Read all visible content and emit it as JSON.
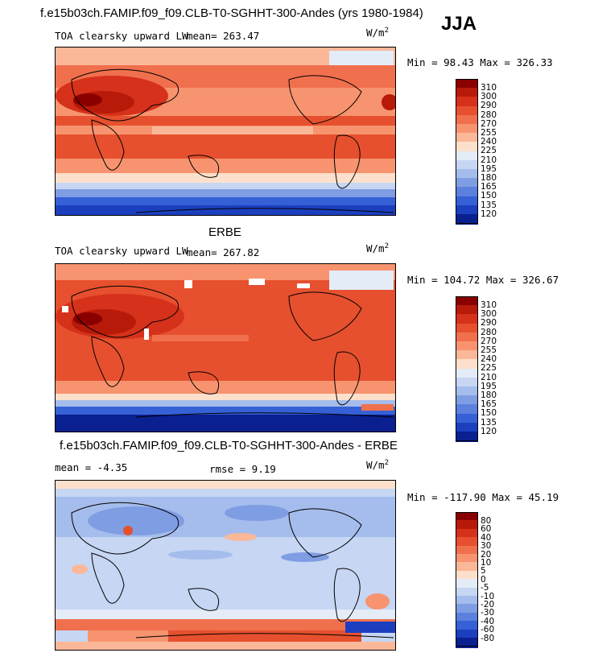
{
  "season": "JJA",
  "panels": [
    {
      "title": "f.e15b03ch.FAMIP.f09_f09.CLB-T0-SGHHT-300-Andes (yrs 1980-1984)",
      "variable": "TOA clearsky upward LW",
      "stat1": "mean= 263.47",
      "stat2": "",
      "units": "W/m",
      "units_exp": "2",
      "minmax": "Min =  98.43 Max = 326.33",
      "levels": [
        "310",
        "300",
        "290",
        "280",
        "270",
        "255",
        "240",
        "225",
        "210",
        "195",
        "180",
        "165",
        "150",
        "135",
        "120"
      ],
      "colors": [
        "#8a0000",
        "#b81a0a",
        "#d6311a",
        "#e6502e",
        "#f0704e",
        "#f7946f",
        "#fbb899",
        "#fde0cc",
        "#e4ecf8",
        "#c6d6f3",
        "#a5bdec",
        "#7f9de3",
        "#5c80dd",
        "#3660d6",
        "#1c3fbf",
        "#0a1f90"
      ]
    },
    {
      "title": "ERBE",
      "variable": "TOA clearsky upward LW",
      "stat1": "mean= 267.82",
      "stat2": "",
      "units": "W/m",
      "units_exp": "2",
      "minmax": "Min = 104.72 Max = 326.67",
      "levels": [
        "310",
        "300",
        "290",
        "280",
        "270",
        "255",
        "240",
        "225",
        "210",
        "195",
        "180",
        "165",
        "150",
        "135",
        "120"
      ],
      "colors": [
        "#8a0000",
        "#b81a0a",
        "#d6311a",
        "#e6502e",
        "#f0704e",
        "#f7946f",
        "#fbb899",
        "#fde0cc",
        "#e4ecf8",
        "#c6d6f3",
        "#a5bdec",
        "#7f9de3",
        "#5c80dd",
        "#3660d6",
        "#1c3fbf",
        "#0a1f90"
      ]
    },
    {
      "title": "f.e15b03ch.FAMIP.f09_f09.CLB-T0-SGHHT-300-Andes - ERBE",
      "variable": "",
      "stat1": "mean =  -4.35",
      "stat2": "rmse =   9.19",
      "units": "W/m",
      "units_exp": "2",
      "minmax": "Min = -117.90 Max =  45.19",
      "levels": [
        "80",
        "60",
        "40",
        "30",
        "20",
        "10",
        "5",
        "0",
        "-5",
        "-10",
        "-20",
        "-30",
        "-40",
        "-60",
        "-80"
      ],
      "colors": [
        "#8a0000",
        "#b81a0a",
        "#d6311a",
        "#e6502e",
        "#f0704e",
        "#f7946f",
        "#fbb899",
        "#fde0cc",
        "#e4ecf8",
        "#c6d6f3",
        "#a5bdec",
        "#7f9de3",
        "#5c80dd",
        "#3660d6",
        "#1c3fbf",
        "#0a1f90"
      ]
    }
  ]
}
